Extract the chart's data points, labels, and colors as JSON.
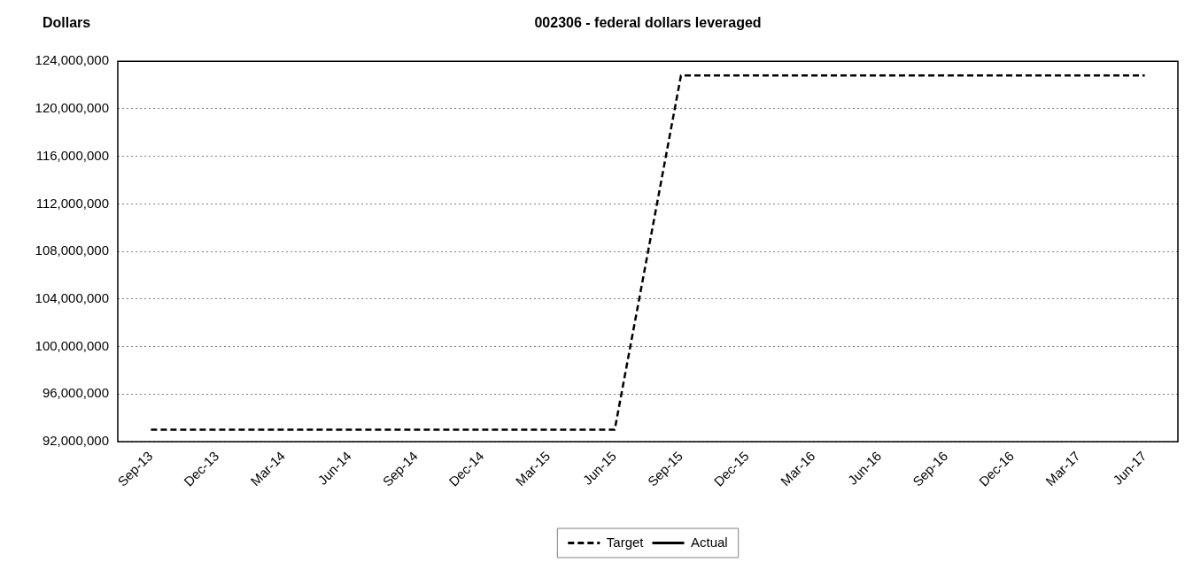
{
  "chart_data": {
    "type": "line",
    "title": "002306 - federal dollars leveraged",
    "ylabel": "Dollars",
    "categories": [
      "Sep-13",
      "Dec-13",
      "Mar-14",
      "Jun-14",
      "Sep-14",
      "Dec-14",
      "Mar-15",
      "Jun-15",
      "Sep-15",
      "Dec-15",
      "Mar-16",
      "Jun-16",
      "Sep-16",
      "Dec-16",
      "Mar-17",
      "Jun-17"
    ],
    "series": [
      {
        "name": "Target",
        "color": "#000000",
        "line_style": "dashed",
        "values": [
          93000000,
          93000000,
          93000000,
          93000000,
          93000000,
          93000000,
          93000000,
          93000000,
          122800000,
          122800000,
          122800000,
          122800000,
          122800000,
          122800000,
          122800000,
          122800000
        ]
      },
      {
        "name": "Actual",
        "color": "#000000",
        "line_style": "solid",
        "values": [
          null,
          null,
          null,
          null,
          null,
          null,
          null,
          null,
          null,
          null,
          null,
          null,
          null,
          null,
          null,
          null
        ]
      }
    ],
    "ylim": [
      92000000,
      124000000
    ],
    "yticks": [
      {
        "value": 92000000,
        "label": "92,000,000"
      },
      {
        "value": 96000000,
        "label": "96,000,000"
      },
      {
        "value": 100000000,
        "label": "100,000,000"
      },
      {
        "value": 104000000,
        "label": "104,000,000"
      },
      {
        "value": 108000000,
        "label": "108,000,000"
      },
      {
        "value": 112000000,
        "label": "112,000,000"
      },
      {
        "value": 116000000,
        "label": "116,000,000"
      },
      {
        "value": 120000000,
        "label": "120,000,000"
      },
      {
        "value": 124000000,
        "label": "124,000,000"
      }
    ],
    "grid": "y",
    "legend": "bottom",
    "marker": "none"
  }
}
